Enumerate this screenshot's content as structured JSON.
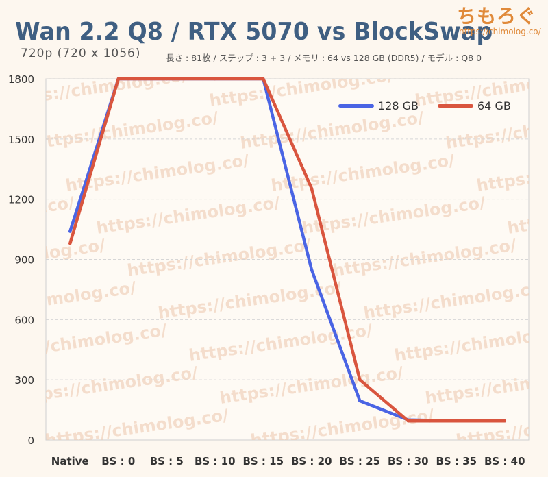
{
  "header": {
    "title": "Wan 2.2 Q8 / RTX 5070 vs BlockSwap",
    "subtitle": "720p (720 x 1056)",
    "details_prefix": "長さ : 81枚 / ステップ : 3 + 3 / メモリ : ",
    "details_memory": "64 vs 128 GB",
    "details_suffix": " (DDR5) / モデル : Q8 0",
    "logo_text": "ちもろぐ",
    "site_url": "https://chimolog.co/"
  },
  "watermark": {
    "text": "https://chimolog.co/"
  },
  "colors": {
    "series_128": "#4a64e4",
    "series_64": "#d9553e",
    "title": "#3f5f82",
    "grid": "#d6d6d6",
    "axis_text": "#333333",
    "watermark": "#f0cfb8"
  },
  "chart_data": {
    "type": "line",
    "categories": [
      "Native",
      "BS : 0",
      "BS : 5",
      "BS : 10",
      "BS : 15",
      "BS : 20",
      "BS : 25",
      "BS : 30",
      "BS : 35",
      "BS : 40"
    ],
    "series": [
      {
        "name": "128 GB",
        "color": "#4a64e4",
        "values": [
          1040,
          1800,
          1800,
          1800,
          1800,
          850,
          195,
          100,
          95,
          95
        ]
      },
      {
        "name": "64 GB",
        "color": "#d9553e",
        "values": [
          980,
          1800,
          1800,
          1800,
          1800,
          1255,
          300,
          95,
          95,
          95
        ]
      }
    ],
    "yticks": [
      0,
      300,
      600,
      900,
      1200,
      1500,
      1800
    ],
    "ylim": [
      0,
      1800
    ],
    "grid": true,
    "legend": "top-right",
    "title": "Wan 2.2 Q8 / RTX 5070 vs BlockSwap",
    "xlabel": "",
    "ylabel": ""
  }
}
